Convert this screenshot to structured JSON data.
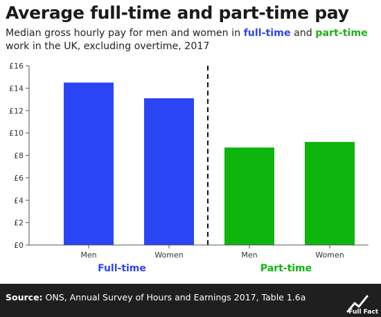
{
  "title": "Average full-time and part-time pay",
  "subtitle": {
    "part1": "Median gross hourly pay for men and women in ",
    "fulltime": "full-time",
    "part2": " and ",
    "parttime": "part-time",
    "part3": " work in the UK, excluding overtime, 2017"
  },
  "colors": {
    "fulltime": "#2b45f5",
    "parttime": "#0db50d",
    "divider": "#111111",
    "axis": "#555555"
  },
  "chart_data": {
    "type": "bar",
    "title": "Average full-time and part-time pay",
    "ylim": [
      0,
      16
    ],
    "yticks": [
      0,
      2,
      4,
      6,
      8,
      10,
      12,
      14,
      16
    ],
    "ytick_labels": [
      "£0",
      "£2",
      "£4",
      "£6",
      "£8",
      "£10",
      "£12",
      "£14",
      "£16"
    ],
    "categories": [
      "Men",
      "Women",
      "Men",
      "Women"
    ],
    "values": [
      14.5,
      13.1,
      8.7,
      9.2
    ],
    "groups": [
      {
        "name": "Full-time",
        "color": "#2b45f5",
        "indices": [
          0,
          1
        ]
      },
      {
        "name": "Part-time",
        "color": "#0db50d",
        "indices": [
          2,
          3
        ]
      }
    ],
    "grid": false
  },
  "footer": {
    "source_label": "Source:",
    "source_text": " ONS, Annual Survey of Hours and Earnings 2017, Table 1.6a",
    "logo_icon": "full-fact-logo-icon",
    "logo_text": "Full Fact"
  }
}
